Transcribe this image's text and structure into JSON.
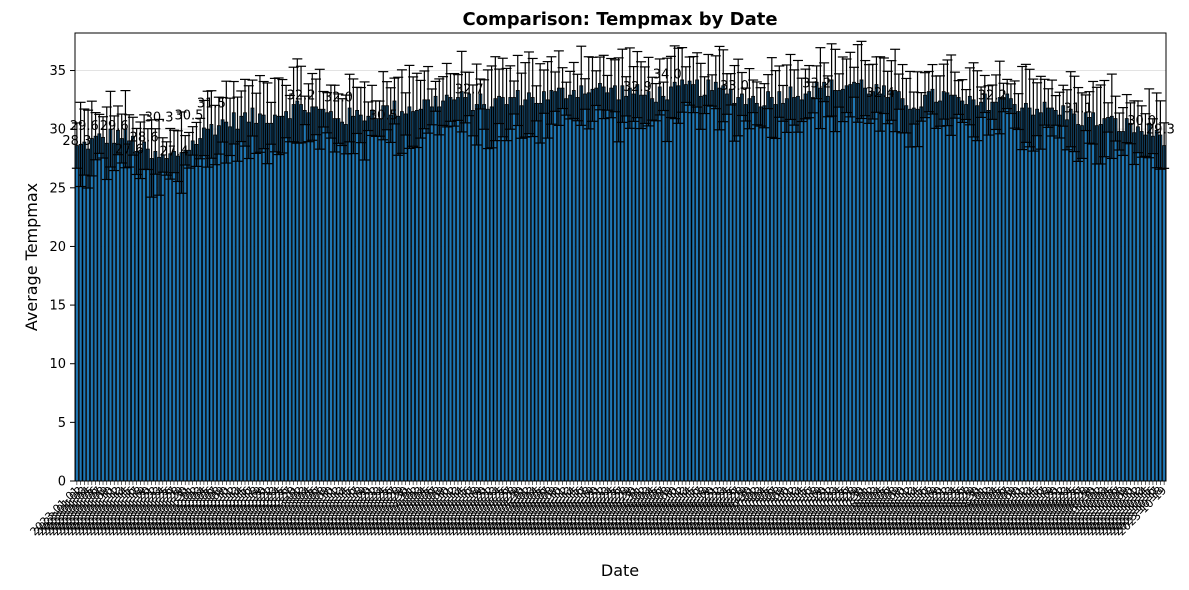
{
  "chart_data": {
    "type": "bar",
    "title": "Comparison: Tempmax by Date",
    "xlabel": "Date",
    "ylabel": "Average Tempmax",
    "ylim": [
      0,
      38.2
    ],
    "yticks": [
      0,
      5,
      10,
      15,
      20,
      25,
      30,
      35
    ],
    "grid": true,
    "legend": "none",
    "bar_color": "#1f77b4",
    "bar_edge_color": "#000000",
    "errorbar_color": "#000000",
    "n_bars": 292,
    "date_range": [
      "2023-01-01",
      "2023-10-19"
    ],
    "control_points": [
      [
        0,
        28.4
      ],
      [
        4,
        28.9
      ],
      [
        8,
        29.3
      ],
      [
        12,
        29.6
      ],
      [
        16,
        28.6
      ],
      [
        20,
        27.6
      ],
      [
        24,
        27.4
      ],
      [
        28,
        28.1
      ],
      [
        32,
        29.0
      ],
      [
        36,
        30.2
      ],
      [
        40,
        30.6
      ],
      [
        44,
        30.9
      ],
      [
        48,
        31.0
      ],
      [
        52,
        31.2
      ],
      [
        56,
        31.6
      ],
      [
        60,
        32.0
      ],
      [
        64,
        31.6
      ],
      [
        68,
        31.2
      ],
      [
        72,
        31.0
      ],
      [
        76,
        31.2
      ],
      [
        80,
        31.5
      ],
      [
        84,
        31.7
      ],
      [
        88,
        31.7
      ],
      [
        92,
        32.0
      ],
      [
        96,
        32.4
      ],
      [
        100,
        32.6
      ],
      [
        104,
        32.5
      ],
      [
        108,
        32.2
      ],
      [
        112,
        32.3
      ],
      [
        116,
        32.5
      ],
      [
        120,
        32.8
      ],
      [
        124,
        32.6
      ],
      [
        128,
        32.9
      ],
      [
        132,
        33.3
      ],
      [
        136,
        33.5
      ],
      [
        140,
        33.4
      ],
      [
        144,
        33.3
      ],
      [
        148,
        33.2
      ],
      [
        152,
        32.9
      ],
      [
        156,
        33.0
      ],
      [
        160,
        33.2
      ],
      [
        164,
        33.6
      ],
      [
        168,
        33.5
      ],
      [
        172,
        33.3
      ],
      [
        176,
        33.0
      ],
      [
        180,
        32.5
      ],
      [
        184,
        32.6
      ],
      [
        188,
        32.9
      ],
      [
        192,
        33.2
      ],
      [
        196,
        33.3
      ],
      [
        200,
        33.5
      ],
      [
        204,
        33.6
      ],
      [
        208,
        33.9
      ],
      [
        212,
        33.6
      ],
      [
        216,
        33.0
      ],
      [
        220,
        32.5
      ],
      [
        224,
        32.2
      ],
      [
        228,
        32.6
      ],
      [
        232,
        32.9
      ],
      [
        236,
        32.3
      ],
      [
        240,
        32.0
      ],
      [
        244,
        32.4
      ],
      [
        248,
        32.6
      ],
      [
        252,
        32.2
      ],
      [
        256,
        31.9
      ],
      [
        260,
        31.6
      ],
      [
        264,
        31.4
      ],
      [
        268,
        31.0
      ],
      [
        272,
        30.8
      ],
      [
        276,
        30.6
      ],
      [
        280,
        30.3
      ],
      [
        284,
        30.0
      ],
      [
        288,
        29.7
      ],
      [
        291,
        29.4
      ]
    ],
    "error_range": [
      1.2,
      3.6
    ],
    "data_labels": [
      {
        "index": 0,
        "text": "28.3"
      },
      {
        "index": 2,
        "text": "29.6"
      },
      {
        "index": 10,
        "text": "29.6"
      },
      {
        "index": 14,
        "text": "27.6"
      },
      {
        "index": 18,
        "text": "28.6"
      },
      {
        "index": 22,
        "text": "30.3"
      },
      {
        "index": 26,
        "text": "27.4"
      },
      {
        "index": 30,
        "text": "30.5"
      },
      {
        "index": 36,
        "text": "31.5"
      },
      {
        "index": 60,
        "text": "32.2"
      },
      {
        "index": 70,
        "text": "32.0"
      },
      {
        "index": 82,
        "text": "30.5"
      },
      {
        "index": 105,
        "text": "32.7"
      },
      {
        "index": 150,
        "text": "32.9"
      },
      {
        "index": 158,
        "text": "34.0"
      },
      {
        "index": 176,
        "text": "33.0"
      },
      {
        "index": 198,
        "text": "33.2"
      },
      {
        "index": 215,
        "text": "32.4"
      },
      {
        "index": 245,
        "text": "32.2"
      },
      {
        "index": 268,
        "text": "31.1"
      },
      {
        "index": 285,
        "text": "30.0"
      },
      {
        "index": 290,
        "text": "29.3"
      }
    ]
  }
}
